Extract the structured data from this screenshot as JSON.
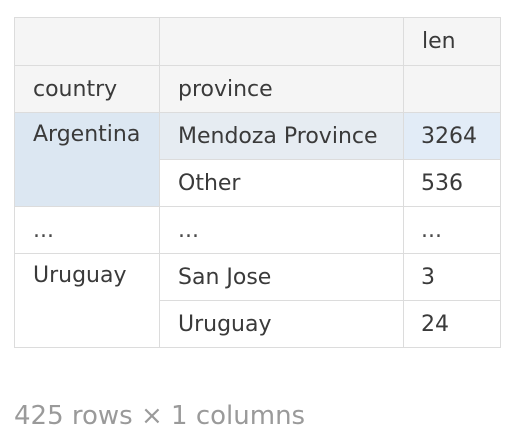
{
  "table": {
    "header": {
      "column": "len",
      "index_names": [
        "country",
        "province"
      ]
    },
    "rows": [
      {
        "country": "Argentina",
        "province": "Mendoza Province",
        "len": "3264"
      },
      {
        "country": "",
        "province": "Other",
        "len": "536"
      },
      {
        "country": "...",
        "province": "...",
        "len": "..."
      },
      {
        "country": "Uruguay",
        "province": "San Jose",
        "len": "3"
      },
      {
        "country": "",
        "province": "Uruguay",
        "len": "24"
      }
    ]
  },
  "footer": {
    "summary": "425 rows × 1 columns"
  },
  "colors": {
    "highlight_index": "#dce7f2",
    "highlight_value": "#e2ecf7",
    "header_bg": "#f5f5f5",
    "border": "#dcdcdc",
    "footer_text": "#9a9a9a"
  }
}
